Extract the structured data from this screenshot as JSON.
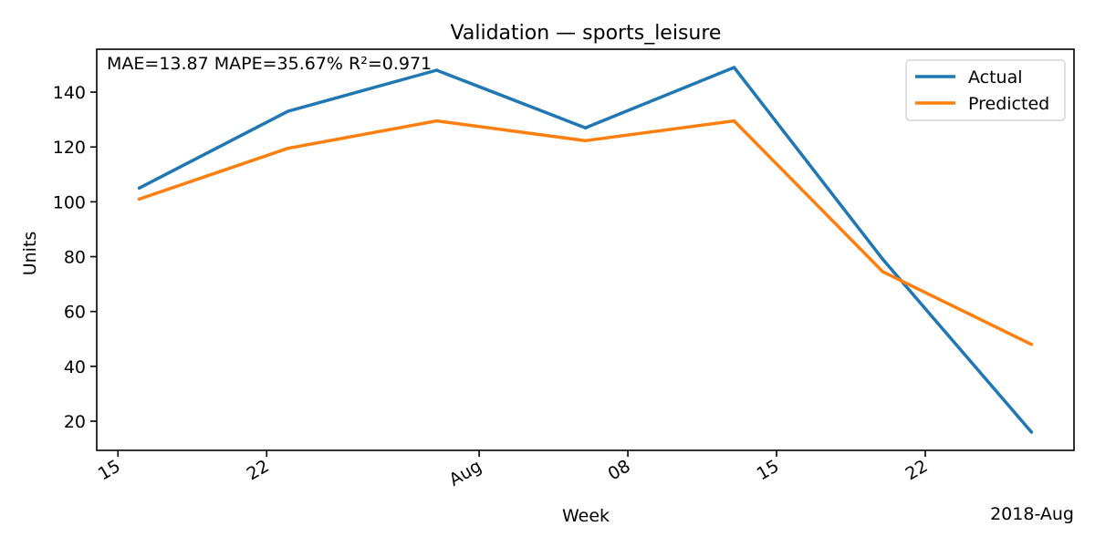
{
  "chart_data": {
    "type": "line",
    "title": "Validation — sports_leisure",
    "xlabel": "Week",
    "ylabel": "Units",
    "x_axis_offset_label": "2018-Aug",
    "annotation": "MAE=13.87  MAPE=35.67%  R²=0.971",
    "x": [
      "2018-07-16",
      "2018-07-23",
      "2018-07-30",
      "2018-08-06",
      "2018-08-13",
      "2018-08-20",
      "2018-08-27"
    ],
    "series": [
      {
        "name": "Actual",
        "color": "#1f77b4",
        "values": [
          105,
          133,
          148,
          127,
          149,
          79,
          16
        ]
      },
      {
        "name": "Predicted",
        "color": "#ff7f0e",
        "values": [
          101,
          119.5,
          129.5,
          122.3,
          129.5,
          74.5,
          48
        ]
      }
    ],
    "x_ticks": [
      {
        "date": "2018-07-15",
        "label": "15"
      },
      {
        "date": "2018-07-22",
        "label": "22"
      },
      {
        "date": "2018-08-01",
        "label": "Aug"
      },
      {
        "date": "2018-08-08",
        "label": "08"
      },
      {
        "date": "2018-08-15",
        "label": "15"
      },
      {
        "date": "2018-08-22",
        "label": "22"
      }
    ],
    "xlim": [
      "2018-07-14",
      "2018-08-29"
    ],
    "y_ticks": [
      20,
      40,
      60,
      80,
      100,
      120,
      140
    ],
    "ylim": [
      9.35,
      155.65
    ],
    "legend_position": "upper right",
    "grid": false
  }
}
